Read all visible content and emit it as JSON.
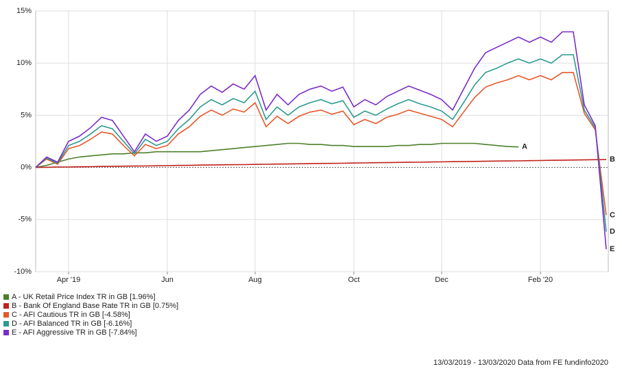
{
  "chart_data": {
    "type": "line",
    "categories": [
      null,
      null,
      null,
      "Apr '19",
      null,
      null,
      null,
      null,
      null,
      null,
      null,
      null,
      "Jun",
      null,
      null,
      null,
      null,
      null,
      null,
      null,
      "Aug",
      null,
      null,
      null,
      null,
      null,
      null,
      null,
      null,
      "Oct",
      null,
      null,
      null,
      null,
      null,
      null,
      null,
      "Dec",
      null,
      null,
      null,
      null,
      null,
      null,
      null,
      null,
      "Feb '20",
      null,
      null,
      null,
      null,
      null,
      null
    ],
    "ylim": [
      -10,
      15
    ],
    "yticks": [
      {
        "value": -10,
        "label": "-10%"
      },
      {
        "value": -5,
        "label": "-5%"
      },
      {
        "value": 0,
        "label": "0%"
      },
      {
        "value": 5,
        "label": "5%"
      },
      {
        "value": 10,
        "label": "10%"
      },
      {
        "value": 15,
        "label": "15%"
      }
    ],
    "grid": true,
    "series": [
      {
        "name": "A - UK Retail Price Index TR in GB [1.96%]",
        "label": "A",
        "color": "#4a7f2a",
        "values": [
          0,
          0.2,
          0.5,
          0.8,
          1,
          1.1,
          1.2,
          1.3,
          1.3,
          1.4,
          1.4,
          1.5,
          1.5,
          1.5,
          1.5,
          1.5,
          1.6,
          1.7,
          1.8,
          1.9,
          2,
          2.1,
          2.2,
          2.3,
          2.3,
          2.2,
          2.2,
          2.1,
          2.1,
          2,
          2,
          2,
          2,
          2.1,
          2.1,
          2.2,
          2.2,
          2.3,
          2.3,
          2.3,
          2.3,
          2.2,
          2.1,
          2,
          1.96,
          null,
          null,
          null,
          null,
          null,
          null,
          null,
          null
        ]
      },
      {
        "name": "B - Bank Of England Base Rate TR in GB [0.75%]",
        "label": "B",
        "color": "#c0201a",
        "values": [
          0,
          0.01,
          0.03,
          0.04,
          0.06,
          0.07,
          0.09,
          0.1,
          0.12,
          0.13,
          0.14,
          0.16,
          0.17,
          0.19,
          0.2,
          0.22,
          0.23,
          0.25,
          0.26,
          0.27,
          0.29,
          0.3,
          0.32,
          0.33,
          0.35,
          0.36,
          0.38,
          0.39,
          0.4,
          0.42,
          0.43,
          0.45,
          0.46,
          0.48,
          0.49,
          0.5,
          0.52,
          0.53,
          0.55,
          0.56,
          0.58,
          0.59,
          0.61,
          0.62,
          0.63,
          0.65,
          0.66,
          0.68,
          0.69,
          0.71,
          0.72,
          0.74,
          0.75
        ]
      },
      {
        "name": "C - AFI Cautious TR in GB [-4.58%]",
        "label": "C",
        "color": "#e8572a",
        "values": [
          0,
          0.8,
          0.3,
          1.8,
          2.1,
          2.7,
          3.4,
          3.2,
          2.1,
          1.1,
          2.2,
          1.8,
          2.1,
          3.2,
          3.9,
          4.9,
          5.5,
          5,
          5.6,
          5.3,
          6.2,
          3.9,
          4.9,
          4.2,
          4.9,
          5.3,
          5.5,
          5.1,
          5.4,
          4.1,
          4.6,
          4.2,
          4.8,
          5.1,
          5.5,
          5.2,
          4.9,
          4.6,
          3.9,
          5.3,
          6.7,
          7.7,
          8.1,
          8.4,
          8.8,
          8.4,
          8.8,
          8.4,
          9.1,
          9.1,
          5.2,
          3.6,
          -4.58
        ]
      },
      {
        "name": "D - AFI Balanced TR in GB [-6.16%]",
        "label": "D",
        "color": "#2a9a8e",
        "values": [
          0,
          0.9,
          0.4,
          2.1,
          2.5,
          3.2,
          4,
          3.7,
          2.5,
          1.3,
          2.7,
          2.1,
          2.5,
          3.7,
          4.6,
          5.8,
          6.5,
          6,
          6.6,
          6.2,
          7.3,
          4.6,
          5.8,
          5,
          5.8,
          6.2,
          6.5,
          6.1,
          6.4,
          4.8,
          5.4,
          5,
          5.6,
          6.1,
          6.5,
          6.1,
          5.8,
          5.4,
          4.6,
          6.2,
          7.9,
          9.1,
          9.5,
          10,
          10.4,
          10,
          10.4,
          10,
          10.8,
          10.8,
          5.5,
          3.8,
          -6.16
        ]
      },
      {
        "name": "E - AFI Aggressive TR in GB [-7.84%]",
        "label": "E",
        "color": "#7a2bc8",
        "values": [
          0,
          1,
          0.5,
          2.5,
          3,
          3.8,
          4.8,
          4.5,
          3,
          1.5,
          3.2,
          2.5,
          3,
          4.5,
          5.5,
          7,
          7.8,
          7.2,
          8,
          7.5,
          8.8,
          5.5,
          7,
          6,
          7,
          7.5,
          7.8,
          7.3,
          7.7,
          5.8,
          6.5,
          6,
          6.8,
          7.3,
          7.8,
          7.4,
          7,
          6.5,
          5.5,
          7.5,
          9.5,
          11,
          11.5,
          12,
          12.5,
          12,
          12.5,
          12,
          13,
          13,
          6,
          4,
          -7.84
        ]
      }
    ],
    "footer": "13/03/2019 - 13/03/2020 Data from FE fundinfo2020"
  }
}
